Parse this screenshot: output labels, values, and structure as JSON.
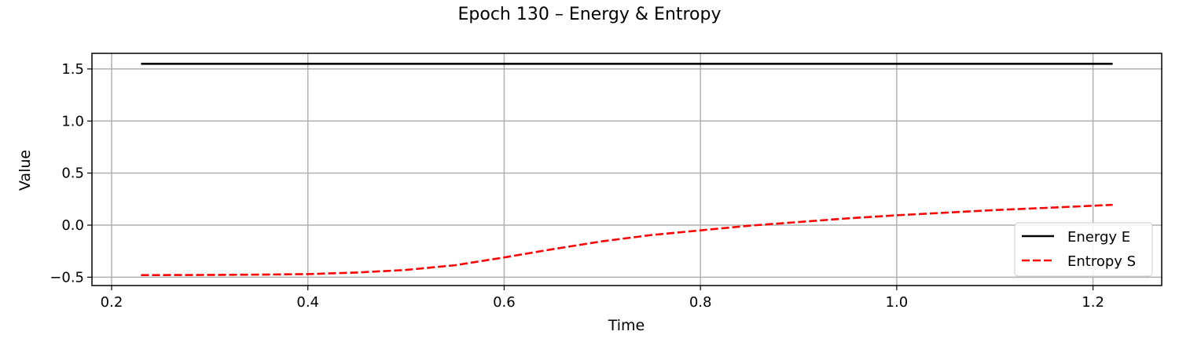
{
  "chart_data": {
    "type": "line",
    "title": "Epoch 130 – Energy & Entropy",
    "xlabel": "Time",
    "ylabel": "Value",
    "xlim": [
      0.18,
      1.27
    ],
    "ylim": [
      -0.58,
      1.65
    ],
    "x_ticks": [
      0.2,
      0.4,
      0.6,
      0.8,
      1.0,
      1.2
    ],
    "x_tick_labels": [
      "0.2",
      "0.4",
      "0.6",
      "0.8",
      "1.0",
      "1.2"
    ],
    "y_ticks": [
      1.5,
      1.0,
      0.5,
      0.0,
      -0.5
    ],
    "y_tick_labels": [
      "1.5",
      "1.0",
      "0.5",
      "0.0",
      "−0.5"
    ],
    "grid": true,
    "legend_position": "lower-right",
    "series": [
      {
        "name": "Energy E",
        "color": "#000000",
        "style": "solid",
        "x": [
          0.23,
          0.4,
          0.6,
          0.8,
          1.0,
          1.22
        ],
        "y": [
          1.55,
          1.55,
          1.55,
          1.55,
          1.55,
          1.55
        ]
      },
      {
        "name": "Entropy S",
        "color": "#ff0000",
        "style": "dashed",
        "x": [
          0.23,
          0.3,
          0.35,
          0.4,
          0.45,
          0.5,
          0.55,
          0.6,
          0.65,
          0.7,
          0.75,
          0.8,
          0.85,
          0.9,
          0.95,
          1.0,
          1.05,
          1.1,
          1.15,
          1.22
        ],
        "y": [
          -0.48,
          -0.478,
          -0.475,
          -0.47,
          -0.455,
          -0.43,
          -0.385,
          -0.31,
          -0.23,
          -0.155,
          -0.095,
          -0.05,
          -0.005,
          0.03,
          0.065,
          0.095,
          0.12,
          0.145,
          0.165,
          0.195
        ]
      }
    ]
  }
}
